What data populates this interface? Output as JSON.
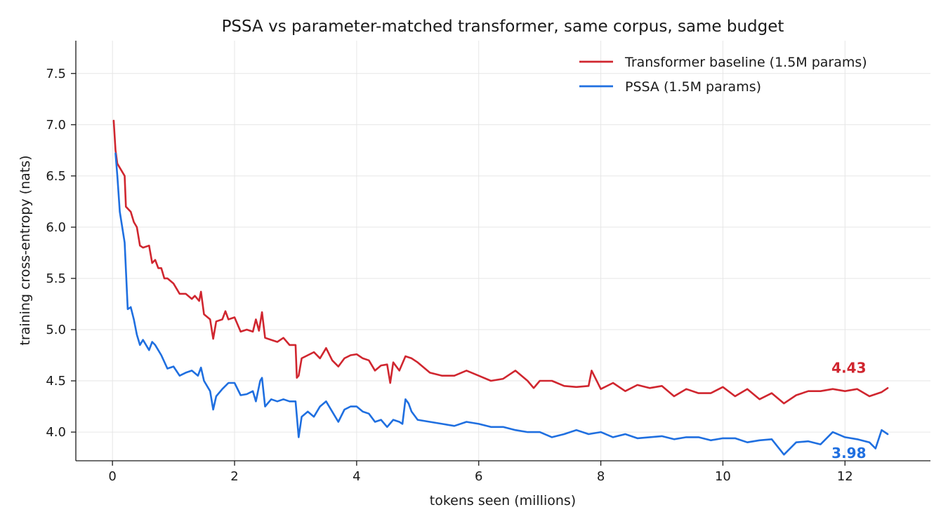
{
  "chart_data": {
    "type": "line",
    "title": "PSSA vs parameter-matched transformer, same corpus, same budget",
    "xlabel": "tokens seen (millions)",
    "ylabel": "training cross-entropy (nats)",
    "xlim": [
      -0.6,
      13.4
    ],
    "ylim": [
      3.72,
      7.82
    ],
    "xticks": [
      0,
      2,
      4,
      6,
      8,
      10,
      12
    ],
    "xtick_labels": [
      "0",
      "2",
      "4",
      "6",
      "8",
      "10",
      "12"
    ],
    "yticks": [
      4.0,
      4.5,
      5.0,
      5.5,
      6.0,
      6.5,
      7.0,
      7.5
    ],
    "ytick_labels": [
      "4.0",
      "4.5",
      "5.0",
      "5.5",
      "6.0",
      "6.5",
      "7.0",
      "7.5"
    ],
    "grid": true,
    "legend_position": "top-right",
    "series": [
      {
        "name": "Transformer baseline (1.5M params)",
        "color": "#d0262f",
        "end_label": "4.43",
        "x": [
          0.02,
          0.05,
          0.08,
          0.12,
          0.2,
          0.22,
          0.3,
          0.35,
          0.4,
          0.45,
          0.5,
          0.6,
          0.65,
          0.7,
          0.75,
          0.8,
          0.85,
          0.9,
          1.0,
          1.1,
          1.2,
          1.3,
          1.35,
          1.42,
          1.45,
          1.5,
          1.6,
          1.65,
          1.7,
          1.8,
          1.85,
          1.9,
          2.0,
          2.1,
          2.2,
          2.3,
          2.35,
          2.4,
          2.45,
          2.5,
          2.6,
          2.7,
          2.8,
          2.9,
          3.0,
          3.02,
          3.05,
          3.1,
          3.2,
          3.3,
          3.4,
          3.5,
          3.6,
          3.7,
          3.8,
          3.9,
          4.0,
          4.1,
          4.2,
          4.3,
          4.4,
          4.5,
          4.55,
          4.6,
          4.7,
          4.8,
          4.9,
          5.0,
          5.2,
          5.4,
          5.6,
          5.8,
          6.0,
          6.2,
          6.4,
          6.6,
          6.8,
          6.9,
          7.0,
          7.2,
          7.4,
          7.6,
          7.8,
          7.85,
          8.0,
          8.2,
          8.4,
          8.6,
          8.8,
          9.0,
          9.2,
          9.4,
          9.6,
          9.8,
          10.0,
          10.2,
          10.4,
          10.6,
          10.8,
          11.0,
          11.2,
          11.4,
          11.6,
          11.8,
          12.0,
          12.2,
          12.4,
          12.6,
          12.7
        ],
        "y": [
          7.04,
          6.75,
          6.62,
          6.58,
          6.5,
          6.2,
          6.15,
          6.05,
          6.0,
          5.82,
          5.8,
          5.82,
          5.65,
          5.68,
          5.6,
          5.6,
          5.5,
          5.5,
          5.45,
          5.35,
          5.35,
          5.3,
          5.33,
          5.28,
          5.37,
          5.15,
          5.1,
          4.91,
          5.08,
          5.1,
          5.18,
          5.1,
          5.12,
          4.98,
          5.0,
          4.98,
          5.1,
          4.99,
          5.17,
          4.92,
          4.9,
          4.88,
          4.92,
          4.85,
          4.85,
          4.53,
          4.55,
          4.72,
          4.75,
          4.78,
          4.72,
          4.82,
          4.7,
          4.64,
          4.72,
          4.75,
          4.76,
          4.72,
          4.7,
          4.6,
          4.65,
          4.66,
          4.48,
          4.68,
          4.6,
          4.74,
          4.72,
          4.68,
          4.58,
          4.55,
          4.55,
          4.6,
          4.55,
          4.5,
          4.52,
          4.6,
          4.5,
          4.43,
          4.5,
          4.5,
          4.45,
          4.44,
          4.45,
          4.6,
          4.42,
          4.48,
          4.4,
          4.46,
          4.43,
          4.45,
          4.35,
          4.42,
          4.38,
          4.38,
          4.44,
          4.35,
          4.42,
          4.32,
          4.38,
          4.28,
          4.36,
          4.4,
          4.4,
          4.42,
          4.4,
          4.42,
          4.35,
          4.39,
          4.43
        ]
      },
      {
        "name": "PSSA (1.5M params)",
        "color": "#1f6fe0",
        "end_label": "3.98",
        "x": [
          0.05,
          0.08,
          0.12,
          0.2,
          0.25,
          0.3,
          0.35,
          0.4,
          0.45,
          0.5,
          0.6,
          0.65,
          0.7,
          0.8,
          0.9,
          1.0,
          1.1,
          1.2,
          1.3,
          1.4,
          1.45,
          1.5,
          1.6,
          1.65,
          1.7,
          1.8,
          1.9,
          2.0,
          2.1,
          2.2,
          2.3,
          2.35,
          2.42,
          2.45,
          2.5,
          2.6,
          2.7,
          2.8,
          2.9,
          3.0,
          3.05,
          3.1,
          3.2,
          3.3,
          3.4,
          3.5,
          3.6,
          3.7,
          3.8,
          3.9,
          4.0,
          4.1,
          4.2,
          4.3,
          4.4,
          4.5,
          4.6,
          4.7,
          4.75,
          4.8,
          4.85,
          4.9,
          5.0,
          5.2,
          5.4,
          5.6,
          5.8,
          6.0,
          6.2,
          6.4,
          6.6,
          6.8,
          7.0,
          7.2,
          7.4,
          7.6,
          7.8,
          8.0,
          8.2,
          8.4,
          8.6,
          8.8,
          9.0,
          9.2,
          9.4,
          9.6,
          9.8,
          10.0,
          10.2,
          10.4,
          10.6,
          10.8,
          11.0,
          11.2,
          11.4,
          11.6,
          11.8,
          12.0,
          12.2,
          12.4,
          12.5,
          12.6,
          12.7
        ],
        "y": [
          6.72,
          6.5,
          6.15,
          5.85,
          5.2,
          5.22,
          5.1,
          4.95,
          4.85,
          4.9,
          4.8,
          4.88,
          4.85,
          4.75,
          4.62,
          4.64,
          4.55,
          4.58,
          4.6,
          4.55,
          4.63,
          4.5,
          4.4,
          4.22,
          4.35,
          4.42,
          4.48,
          4.48,
          4.36,
          4.37,
          4.4,
          4.3,
          4.5,
          4.53,
          4.25,
          4.32,
          4.3,
          4.32,
          4.3,
          4.3,
          3.95,
          4.15,
          4.2,
          4.15,
          4.25,
          4.3,
          4.2,
          4.1,
          4.22,
          4.25,
          4.25,
          4.2,
          4.18,
          4.1,
          4.12,
          4.05,
          4.12,
          4.1,
          4.08,
          4.32,
          4.28,
          4.2,
          4.12,
          4.1,
          4.08,
          4.06,
          4.1,
          4.08,
          4.05,
          4.05,
          4.02,
          4.0,
          4.0,
          3.95,
          3.98,
          4.02,
          3.98,
          4.0,
          3.95,
          3.98,
          3.94,
          3.95,
          3.96,
          3.93,
          3.95,
          3.95,
          3.92,
          3.94,
          3.94,
          3.9,
          3.92,
          3.93,
          3.78,
          3.9,
          3.91,
          3.88,
          4.0,
          3.95,
          3.93,
          3.9,
          3.84,
          4.02,
          3.98
        ]
      }
    ]
  }
}
